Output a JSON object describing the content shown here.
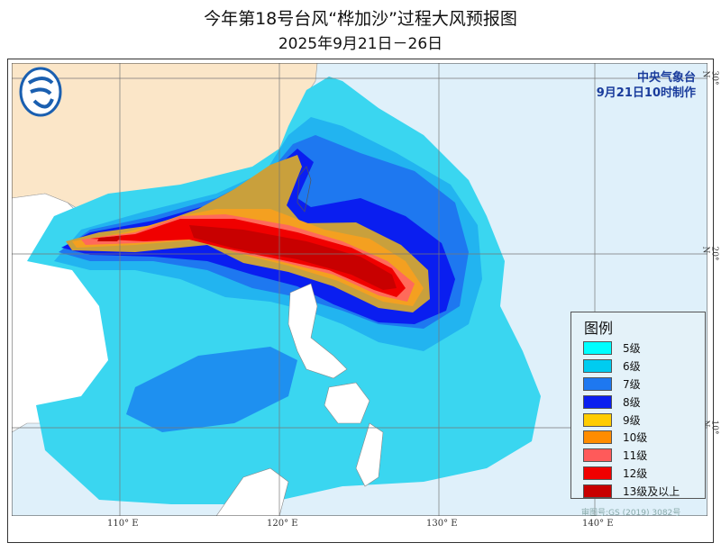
{
  "title": "今年第18号台风“桦加沙”过程大风预报图",
  "subtitle": "2025年9月21日－26日",
  "agency": {
    "name": "中央气象台",
    "issued": "9月21日10时制作"
  },
  "legend": {
    "title": "图例",
    "items": [
      {
        "label": "5级",
        "color": "#00ffff"
      },
      {
        "label": "6级",
        "color": "#00ccf0"
      },
      {
        "label": "7级",
        "color": "#1e78f0"
      },
      {
        "label": "8级",
        "color": "#0a1ef0"
      },
      {
        "label": "9级",
        "color": "#ffcc00"
      },
      {
        "label": "10级",
        "color": "#ff8c00"
      },
      {
        "label": "11级",
        "color": "#ff5a5a"
      },
      {
        "label": "12级",
        "color": "#f00000"
      },
      {
        "label": "13级及以上",
        "color": "#c80000"
      }
    ]
  },
  "axes": {
    "lon": [
      "110° E",
      "120° E",
      "130° E",
      "140° E"
    ],
    "lat": [
      "30° N",
      "20° N",
      "10° N"
    ]
  },
  "approval": "审图号:GS (2019) 3082号",
  "colors": {
    "ocean": "#dff0fa",
    "china_land": "#fbe6c8",
    "other_land": "#ffffff",
    "nine_on_map": "#c9a03c"
  }
}
